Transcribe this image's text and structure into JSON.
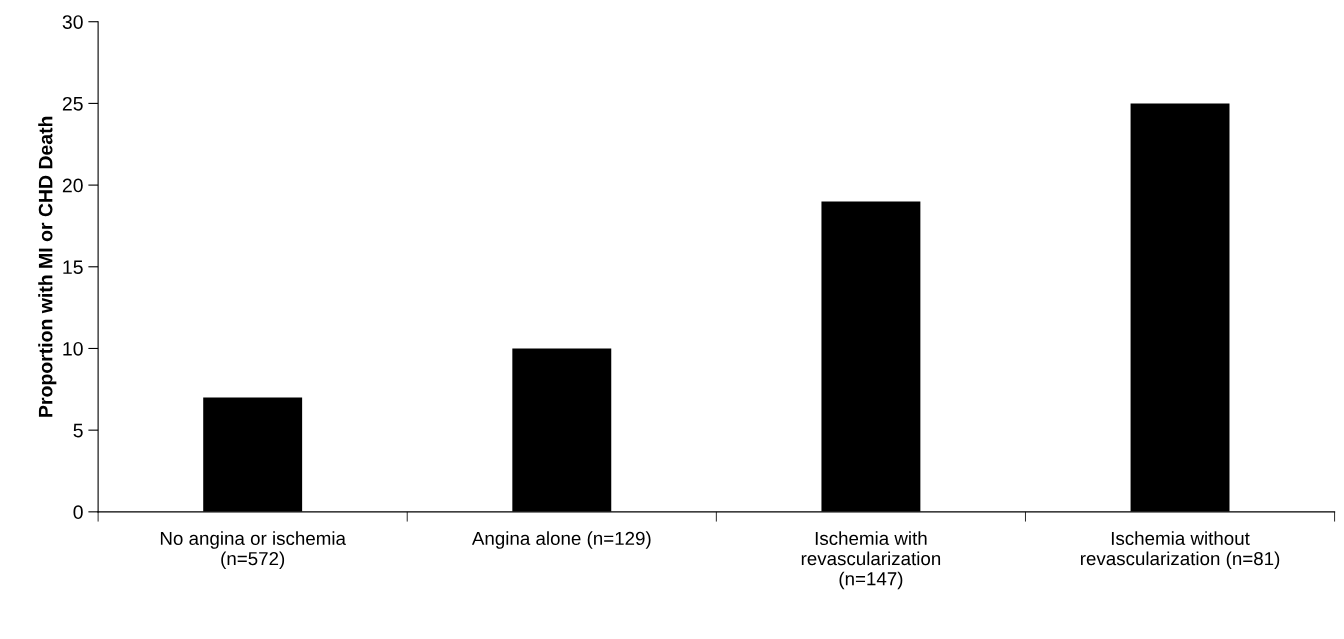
{
  "chart_data": {
    "type": "bar",
    "ylabel": "Proportion with MI or CHD Death",
    "categories": [
      "No angina or ischemia\n(n=572)",
      "Angina alone (n=129)",
      "Ischemia with\nrevascularization\n(n=147)",
      "Ischemia without\nrevascularization (n=81)"
    ],
    "values": [
      7,
      10,
      19,
      25
    ],
    "color": "#000000",
    "ylim": [
      0,
      30
    ],
    "yticks": [
      0,
      5,
      10,
      15,
      20,
      25,
      30
    ],
    "grid": false,
    "legend": false
  }
}
